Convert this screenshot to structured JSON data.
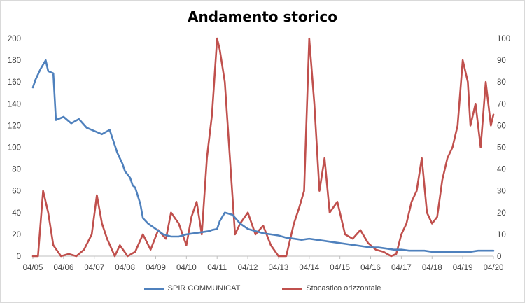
{
  "chart_data": {
    "type": "line",
    "title": "Andamento storico",
    "x_tick_labels": [
      "04/05",
      "04/06",
      "04/07",
      "04/08",
      "04/09",
      "04/10",
      "04/11",
      "04/12",
      "04/13",
      "04/14",
      "04/15",
      "04/16",
      "04/17",
      "04/18",
      "04/19",
      "04/20"
    ],
    "y_left": {
      "ylim": [
        0,
        200
      ],
      "ticks": [
        "0",
        "20",
        "40",
        "60",
        "80",
        "100",
        "120",
        "140",
        "160",
        "180",
        "200"
      ]
    },
    "y_right": {
      "ylim": [
        0,
        100
      ],
      "ticks": [
        "0",
        "10",
        "20",
        "30",
        "40",
        "50",
        "60",
        "70",
        "80",
        "90",
        "100"
      ]
    },
    "grid": false,
    "legend_position": "bottom",
    "series": [
      {
        "name": "SPIR COMMUNICAT",
        "axis": "left",
        "color": "#4f81bd",
        "x": [
          "04/05",
          "05/05",
          "07/05",
          "09/05",
          "10/05",
          "12/05",
          "01/06",
          "04/06",
          "07/06",
          "10/06",
          "01/07",
          "04/07",
          "07/07",
          "10/07",
          "01/08",
          "03/08",
          "04/08",
          "06/08",
          "07/08",
          "08/08",
          "10/08",
          "11/08",
          "01/09",
          "04/09",
          "07/09",
          "10/09",
          "01/10",
          "04/10",
          "07/10",
          "10/10",
          "01/11",
          "02/11",
          "04/11",
          "05/11",
          "07/11",
          "10/11",
          "01/12",
          "04/12",
          "07/12",
          "10/12",
          "01/13",
          "04/13",
          "07/13",
          "10/13",
          "01/14",
          "04/14",
          "07/14",
          "10/14",
          "01/15",
          "04/15",
          "07/15",
          "10/15",
          "01/16",
          "04/16",
          "07/16",
          "10/16",
          "01/17",
          "04/17",
          "07/17",
          "10/17",
          "01/18",
          "04/18",
          "07/18",
          "10/18",
          "01/19",
          "04/19",
          "07/19",
          "10/19",
          "01/20",
          "04/20"
        ],
        "values": [
          155,
          162,
          172,
          180,
          170,
          168,
          125,
          128,
          122,
          126,
          118,
          115,
          112,
          116,
          95,
          85,
          78,
          72,
          65,
          63,
          48,
          35,
          30,
          25,
          20,
          18,
          18,
          20,
          21,
          22,
          23,
          24,
          25,
          32,
          40,
          38,
          30,
          25,
          23,
          21,
          20,
          19,
          17,
          16,
          15,
          16,
          15,
          14,
          13,
          12,
          11,
          10,
          9,
          8,
          8,
          7,
          6,
          6,
          5,
          5,
          5,
          4,
          4,
          4,
          4,
          4,
          4,
          5,
          5,
          5
        ]
      },
      {
        "name": "Stocastico orizzontale",
        "axis": "right",
        "color": "#c0504d",
        "x": [
          "04/05",
          "06/05",
          "08/05",
          "10/05",
          "12/05",
          "03/06",
          "06/06",
          "09/06",
          "12/06",
          "03/07",
          "05/07",
          "07/07",
          "09/07",
          "12/07",
          "02/08",
          "05/08",
          "08/08",
          "11/08",
          "02/09",
          "05/09",
          "08/09",
          "10/09",
          "01/10",
          "04/10",
          "06/10",
          "08/10",
          "10/10",
          "12/10",
          "02/11",
          "04/11",
          "05/11",
          "07/11",
          "09/11",
          "11/11",
          "01/12",
          "04/12",
          "07/12",
          "10/12",
          "01/13",
          "04/13",
          "07/13",
          "10/13",
          "12/13",
          "02/14",
          "04/14",
          "06/14",
          "08/14",
          "10/14",
          "12/14",
          "03/15",
          "06/15",
          "09/15",
          "12/15",
          "03/16",
          "06/16",
          "09/16",
          "12/16",
          "02/17",
          "04/17",
          "06/17",
          "08/17",
          "10/17",
          "12/17",
          "02/18",
          "04/18",
          "06/18",
          "08/18",
          "10/18",
          "12/18",
          "02/19",
          "04/19",
          "06/19",
          "07/19",
          "09/19",
          "11/19",
          "01/20",
          "03/20",
          "04/20"
        ],
        "values": [
          0,
          0,
          30,
          20,
          5,
          0,
          1,
          0,
          3,
          10,
          28,
          15,
          8,
          0,
          5,
          0,
          2,
          10,
          3,
          12,
          8,
          20,
          15,
          5,
          18,
          25,
          10,
          45,
          65,
          100,
          95,
          80,
          45,
          10,
          15,
          20,
          10,
          14,
          5,
          0,
          0,
          15,
          22,
          30,
          100,
          70,
          30,
          45,
          20,
          25,
          10,
          8,
          12,
          6,
          3,
          2,
          0,
          1,
          10,
          15,
          25,
          30,
          45,
          20,
          15,
          18,
          35,
          45,
          50,
          60,
          90,
          80,
          60,
          70,
          50,
          80,
          60,
          65
        ]
      }
    ]
  },
  "legend": {
    "series_1_label": "SPIR COMMUNICAT",
    "series_2_label": "Stocastico orizzontale"
  }
}
